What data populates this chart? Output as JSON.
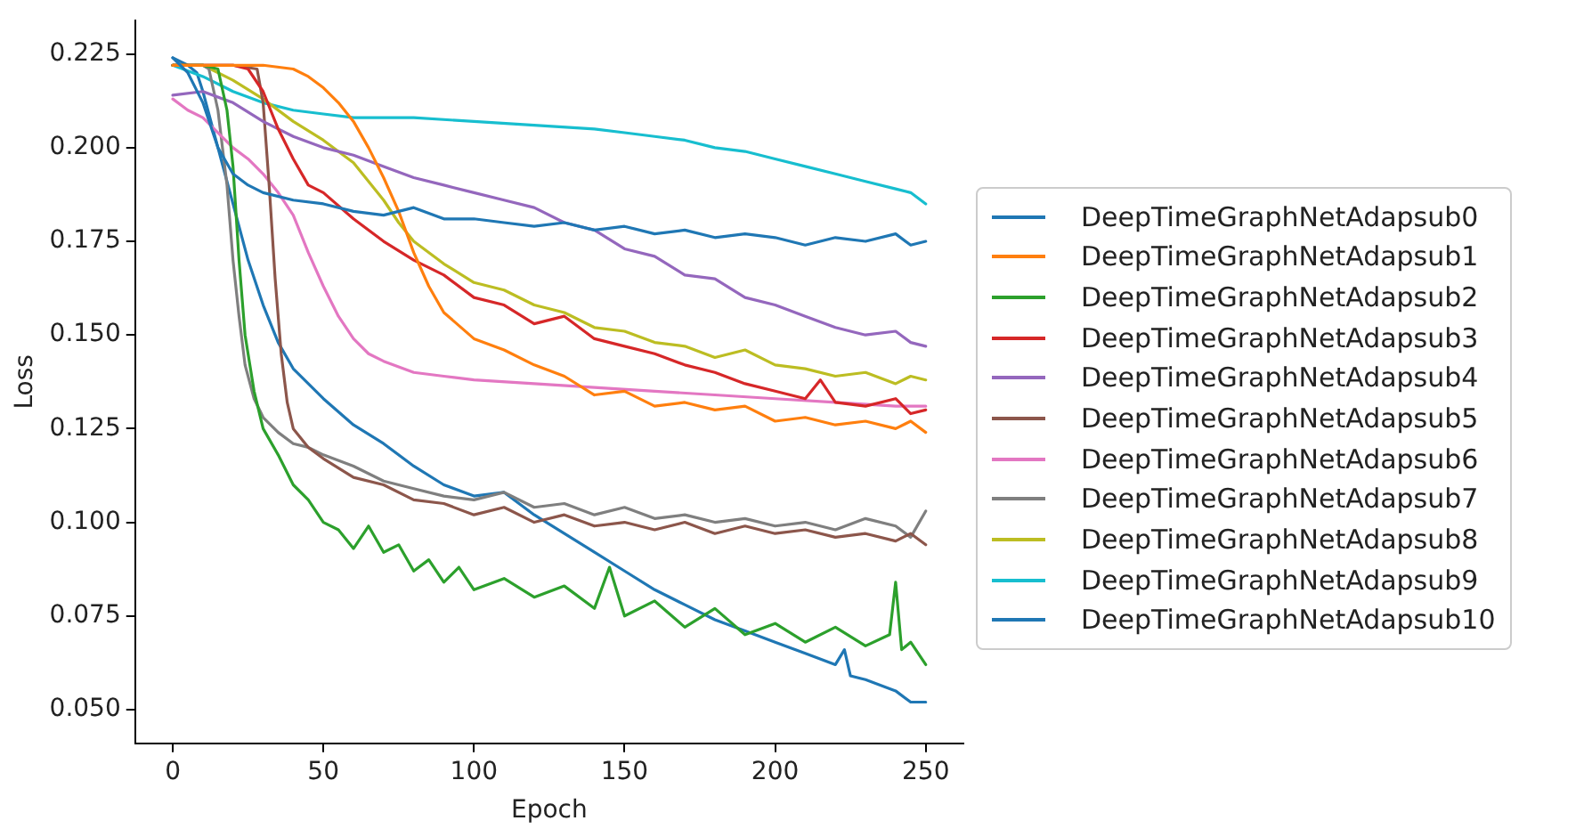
{
  "chart_data": {
    "type": "line",
    "xlabel": "Epoch",
    "ylabel": "Loss",
    "xlim": [
      -12.5,
      262.5
    ],
    "ylim": [
      0.041,
      0.234
    ],
    "xticks": [
      0,
      50,
      100,
      150,
      200,
      250
    ],
    "yticks": [
      {
        "value": 0.05,
        "label": "0.050"
      },
      0.075,
      {
        "value": 0.1,
        "label": "0.100"
      },
      0.125,
      {
        "value": 0.15,
        "label": "0.150"
      },
      0.175,
      {
        "value": 0.2,
        "label": "0.200"
      },
      0.225
    ],
    "grid": false,
    "legend": "right",
    "marker": "none",
    "line_style": "solid",
    "series": [
      {
        "name": "DeepTimeGraphNetAdapsub0",
        "color": "#1f77b4",
        "x": [
          0,
          5,
          10,
          15,
          20,
          25,
          30,
          40,
          50,
          60,
          70,
          80,
          90,
          100,
          110,
          120,
          130,
          140,
          150,
          160,
          170,
          180,
          190,
          200,
          210,
          220,
          230,
          240,
          245,
          250
        ],
        "values": [
          0.224,
          0.22,
          0.212,
          0.2,
          0.193,
          0.19,
          0.188,
          0.186,
          0.185,
          0.183,
          0.182,
          0.184,
          0.181,
          0.181,
          0.18,
          0.179,
          0.18,
          0.178,
          0.179,
          0.177,
          0.178,
          0.176,
          0.177,
          0.176,
          0.174,
          0.176,
          0.175,
          0.177,
          0.174,
          0.175
        ]
      },
      {
        "name": "DeepTimeGraphNetAdapsub1",
        "color": "#ff7f0e",
        "x": [
          0,
          10,
          20,
          30,
          40,
          45,
          50,
          55,
          60,
          65,
          70,
          75,
          80,
          85,
          90,
          100,
          110,
          120,
          130,
          140,
          150,
          160,
          170,
          180,
          190,
          200,
          210,
          220,
          230,
          240,
          245,
          250
        ],
        "values": [
          0.222,
          0.222,
          0.222,
          0.222,
          0.221,
          0.219,
          0.216,
          0.212,
          0.207,
          0.2,
          0.192,
          0.183,
          0.172,
          0.163,
          0.156,
          0.149,
          0.146,
          0.142,
          0.139,
          0.134,
          0.135,
          0.131,
          0.132,
          0.13,
          0.131,
          0.127,
          0.128,
          0.126,
          0.127,
          0.125,
          0.127,
          0.124
        ]
      },
      {
        "name": "DeepTimeGraphNetAdapsub2",
        "color": "#2ca02c",
        "x": [
          0,
          10,
          15,
          18,
          20,
          22,
          24,
          27,
          30,
          35,
          40,
          45,
          50,
          55,
          60,
          65,
          70,
          75,
          80,
          85,
          90,
          95,
          100,
          110,
          120,
          130,
          140,
          145,
          150,
          160,
          170,
          180,
          190,
          200,
          210,
          220,
          230,
          238,
          240,
          242,
          245,
          250
        ],
        "values": [
          0.222,
          0.222,
          0.221,
          0.21,
          0.195,
          0.17,
          0.15,
          0.135,
          0.125,
          0.118,
          0.11,
          0.106,
          0.1,
          0.098,
          0.093,
          0.099,
          0.092,
          0.094,
          0.087,
          0.09,
          0.084,
          0.088,
          0.082,
          0.085,
          0.08,
          0.083,
          0.077,
          0.088,
          0.075,
          0.079,
          0.072,
          0.077,
          0.07,
          0.073,
          0.068,
          0.072,
          0.067,
          0.07,
          0.084,
          0.066,
          0.068,
          0.062
        ]
      },
      {
        "name": "DeepTimeGraphNetAdapsub3",
        "color": "#d62728",
        "x": [
          0,
          10,
          20,
          25,
          30,
          35,
          40,
          45,
          50,
          60,
          70,
          80,
          90,
          100,
          110,
          120,
          130,
          140,
          150,
          160,
          170,
          180,
          190,
          200,
          210,
          215,
          220,
          230,
          240,
          245,
          250
        ],
        "values": [
          0.222,
          0.222,
          0.222,
          0.221,
          0.215,
          0.205,
          0.197,
          0.19,
          0.188,
          0.181,
          0.175,
          0.17,
          0.166,
          0.16,
          0.158,
          0.153,
          0.155,
          0.149,
          0.147,
          0.145,
          0.142,
          0.14,
          0.137,
          0.135,
          0.133,
          0.138,
          0.132,
          0.131,
          0.133,
          0.129,
          0.13
        ]
      },
      {
        "name": "DeepTimeGraphNetAdapsub4",
        "color": "#9467bd",
        "x": [
          0,
          10,
          20,
          30,
          40,
          50,
          60,
          70,
          80,
          90,
          100,
          110,
          120,
          130,
          140,
          150,
          160,
          170,
          180,
          190,
          200,
          210,
          220,
          230,
          240,
          245,
          250
        ],
        "values": [
          0.214,
          0.215,
          0.212,
          0.207,
          0.203,
          0.2,
          0.198,
          0.195,
          0.192,
          0.19,
          0.188,
          0.186,
          0.184,
          0.18,
          0.178,
          0.173,
          0.171,
          0.166,
          0.165,
          0.16,
          0.158,
          0.155,
          0.152,
          0.15,
          0.151,
          0.148,
          0.147
        ]
      },
      {
        "name": "DeepTimeGraphNetAdapsub5",
        "color": "#8c564b",
        "x": [
          0,
          10,
          20,
          28,
          30,
          32,
          34,
          36,
          38,
          40,
          45,
          50,
          60,
          70,
          80,
          90,
          100,
          110,
          120,
          130,
          140,
          150,
          160,
          170,
          180,
          190,
          200,
          210,
          220,
          230,
          240,
          245,
          250
        ],
        "values": [
          0.222,
          0.222,
          0.222,
          0.221,
          0.212,
          0.19,
          0.165,
          0.145,
          0.132,
          0.125,
          0.12,
          0.117,
          0.112,
          0.11,
          0.106,
          0.105,
          0.102,
          0.104,
          0.1,
          0.102,
          0.099,
          0.1,
          0.098,
          0.1,
          0.097,
          0.099,
          0.097,
          0.098,
          0.096,
          0.097,
          0.095,
          0.097,
          0.094
        ]
      },
      {
        "name": "DeepTimeGraphNetAdapsub6",
        "color": "#e377c2",
        "x": [
          0,
          5,
          10,
          20,
          25,
          30,
          35,
          40,
          45,
          50,
          55,
          60,
          65,
          70,
          80,
          90,
          100,
          120,
          140,
          160,
          180,
          200,
          220,
          240,
          250
        ],
        "values": [
          0.213,
          0.21,
          0.208,
          0.2,
          0.197,
          0.193,
          0.188,
          0.182,
          0.172,
          0.163,
          0.155,
          0.149,
          0.145,
          0.143,
          0.14,
          0.139,
          0.138,
          0.137,
          0.136,
          0.135,
          0.134,
          0.133,
          0.132,
          0.131,
          0.131
        ]
      },
      {
        "name": "DeepTimeGraphNetAdapsub7",
        "color": "#7f7f7f",
        "x": [
          0,
          10,
          12,
          15,
          18,
          20,
          22,
          24,
          27,
          30,
          35,
          40,
          45,
          50,
          60,
          70,
          80,
          90,
          100,
          110,
          120,
          130,
          140,
          150,
          160,
          170,
          180,
          190,
          200,
          210,
          220,
          230,
          240,
          245,
          250
        ],
        "values": [
          0.222,
          0.222,
          0.221,
          0.21,
          0.19,
          0.17,
          0.155,
          0.142,
          0.133,
          0.128,
          0.124,
          0.121,
          0.12,
          0.118,
          0.115,
          0.111,
          0.109,
          0.107,
          0.106,
          0.108,
          0.104,
          0.105,
          0.102,
          0.104,
          0.101,
          0.102,
          0.1,
          0.101,
          0.099,
          0.1,
          0.098,
          0.101,
          0.099,
          0.096,
          0.103
        ]
      },
      {
        "name": "DeepTimeGraphNetAdapsub8",
        "color": "#bcbd22",
        "x": [
          0,
          10,
          20,
          30,
          40,
          50,
          60,
          70,
          75,
          80,
          90,
          100,
          110,
          120,
          130,
          140,
          150,
          160,
          170,
          180,
          190,
          200,
          210,
          220,
          230,
          240,
          245,
          250
        ],
        "values": [
          0.222,
          0.222,
          0.218,
          0.213,
          0.207,
          0.202,
          0.196,
          0.186,
          0.18,
          0.175,
          0.169,
          0.164,
          0.162,
          0.158,
          0.156,
          0.152,
          0.151,
          0.148,
          0.147,
          0.144,
          0.146,
          0.142,
          0.141,
          0.139,
          0.14,
          0.137,
          0.139,
          0.138
        ]
      },
      {
        "name": "DeepTimeGraphNetAdapsub9",
        "color": "#17becf",
        "x": [
          0,
          10,
          20,
          30,
          40,
          50,
          60,
          80,
          100,
          120,
          140,
          150,
          160,
          170,
          180,
          190,
          200,
          210,
          220,
          230,
          240,
          245,
          250
        ],
        "values": [
          0.222,
          0.219,
          0.215,
          0.212,
          0.21,
          0.209,
          0.208,
          0.208,
          0.207,
          0.206,
          0.205,
          0.204,
          0.203,
          0.202,
          0.2,
          0.199,
          0.197,
          0.195,
          0.193,
          0.191,
          0.189,
          0.188,
          0.185
        ]
      },
      {
        "name": "DeepTimeGraphNetAdapsub10",
        "color": "#1f77b4",
        "x": [
          0,
          5,
          8,
          10,
          15,
          20,
          25,
          30,
          35,
          40,
          45,
          50,
          60,
          70,
          80,
          90,
          100,
          110,
          120,
          130,
          140,
          150,
          160,
          170,
          180,
          190,
          200,
          210,
          220,
          223,
          225,
          230,
          240,
          245,
          250
        ],
        "values": [
          0.224,
          0.222,
          0.22,
          0.215,
          0.2,
          0.185,
          0.17,
          0.158,
          0.148,
          0.141,
          0.137,
          0.133,
          0.126,
          0.121,
          0.115,
          0.11,
          0.107,
          0.108,
          0.102,
          0.097,
          0.092,
          0.087,
          0.082,
          0.078,
          0.074,
          0.071,
          0.068,
          0.065,
          0.062,
          0.066,
          0.059,
          0.058,
          0.055,
          0.052,
          0.052
        ]
      }
    ]
  }
}
